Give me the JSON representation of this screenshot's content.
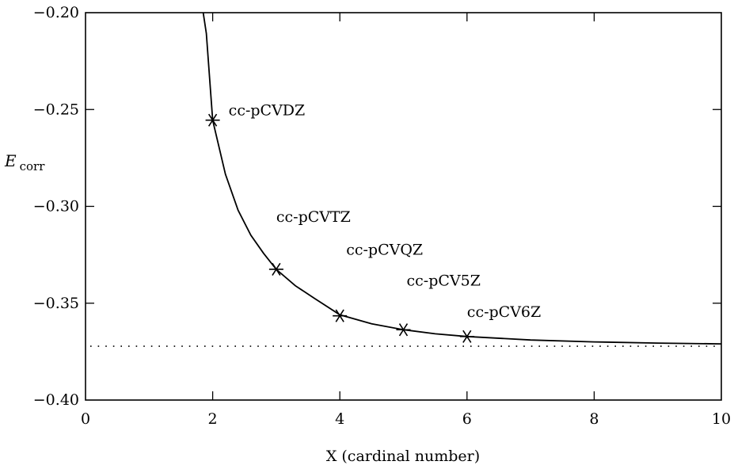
{
  "chart_data": {
    "type": "line",
    "xlabel": "X (cardinal number)",
    "ylabel": {
      "main": "E",
      "sub": "corr"
    },
    "xlim": [
      0,
      10
    ],
    "ylim": [
      -0.4,
      -0.2
    ],
    "x_ticks": [
      0,
      2,
      4,
      6,
      8,
      10
    ],
    "x_tick_labels": [
      "0",
      "2",
      "4",
      "6",
      "8",
      "10"
    ],
    "y_ticks": [
      -0.4,
      -0.35,
      -0.3,
      -0.25,
      -0.2
    ],
    "y_tick_labels": [
      "−0.40",
      "−0.35",
      "−0.30",
      "−0.25",
      "−0.20"
    ],
    "grid": false,
    "legend": false,
    "series": [
      {
        "kind": "points",
        "marker": "asterisk",
        "x": [
          2,
          3,
          4,
          5,
          6
        ],
        "y": [
          -0.2555,
          -0.3325,
          -0.3565,
          -0.3637,
          -0.3672
        ]
      },
      {
        "kind": "fit-curve",
        "line_style": "solid",
        "x": [
          1.85,
          1.9,
          2.0,
          2.2,
          2.4,
          2.6,
          2.8,
          3.0,
          3.3,
          3.6,
          4.0,
          4.5,
          5.0,
          5.5,
          6.0,
          7.0,
          8.0,
          9.0,
          10.0
        ],
        "y": [
          -0.1999,
          -0.2107,
          -0.2555,
          -0.2834,
          -0.302,
          -0.3149,
          -0.3242,
          -0.3325,
          -0.341,
          -0.3475,
          -0.356,
          -0.3606,
          -0.3637,
          -0.3658,
          -0.3672,
          -0.369,
          -0.37,
          -0.3706,
          -0.371
        ]
      },
      {
        "kind": "limit",
        "line_style": "dotted",
        "x": [
          0,
          10
        ],
        "y": [
          -0.3722,
          -0.3722
        ]
      }
    ],
    "annotations": [
      {
        "text": "cc-pCVDZ",
        "x": 2.25,
        "y": -0.2505
      },
      {
        "text": "cc-pCVTZ",
        "x": 3.0,
        "y": -0.3055
      },
      {
        "text": "cc-pCVQZ",
        "x": 4.1,
        "y": -0.3225
      },
      {
        "text": "cc-pCV5Z",
        "x": 5.05,
        "y": -0.3385
      },
      {
        "text": "cc-pCV6Z",
        "x": 6.0,
        "y": -0.3545
      }
    ]
  }
}
